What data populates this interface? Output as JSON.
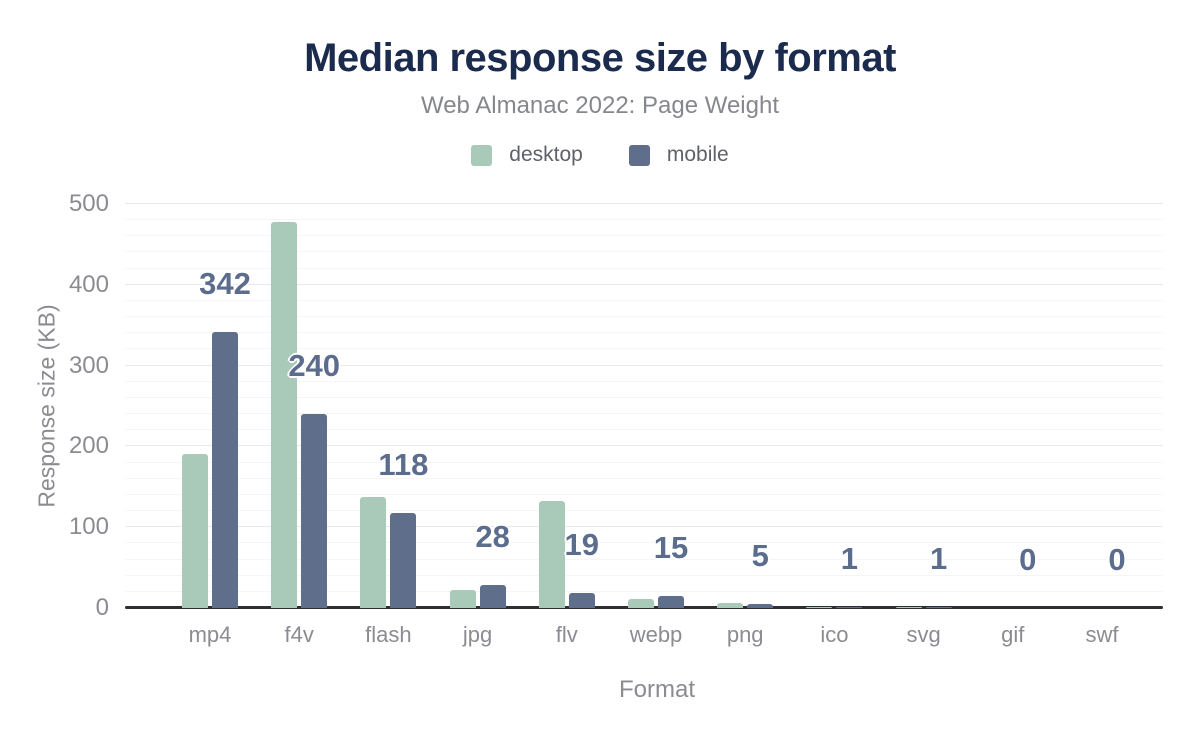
{
  "title": "Median response size by format",
  "subtitle": "Web Almanac 2022: Page Weight",
  "chart_data": {
    "type": "bar",
    "title": "Median response size by format",
    "subtitle": "Web Almanac 2022: Page Weight",
    "categories": [
      "mp4",
      "f4v",
      "flash",
      "jpg",
      "flv",
      "webp",
      "png",
      "ico",
      "svg",
      "gif",
      "swf"
    ],
    "series": [
      {
        "name": "desktop",
        "color": "#a9cab8",
        "values": [
          190,
          478,
          138,
          22,
          133,
          11,
          6,
          1,
          1,
          0,
          0
        ]
      },
      {
        "name": "mobile",
        "color": "#5e6e8b",
        "values": [
          342,
          240,
          118,
          28,
          19,
          15,
          5,
          1,
          1,
          0,
          0
        ]
      }
    ],
    "bar_value_labels": {
      "labeled_series": "mobile",
      "values": [
        "342",
        "240",
        "118",
        "28",
        "19",
        "15",
        "5",
        "1",
        "1",
        "0",
        "0"
      ]
    },
    "xlabel": "Format",
    "ylabel": "Response size (KB)",
    "ylim": [
      0,
      500
    ],
    "yticks": [
      "0",
      "100",
      "200",
      "300",
      "400",
      "500"
    ],
    "grid": {
      "on": true,
      "minor_step": 20,
      "major_step": 100
    },
    "legend_position": "top",
    "colors": {
      "desktop_bar": "#a9cab8",
      "mobile_bar": "#5e6e8b",
      "title_text": "#1b2b4e",
      "subtitle_text": "#85878c",
      "axis_text": "#8b8c92",
      "data_label_text": "#5b6c8d",
      "axis_line": "#2e2e33"
    }
  }
}
